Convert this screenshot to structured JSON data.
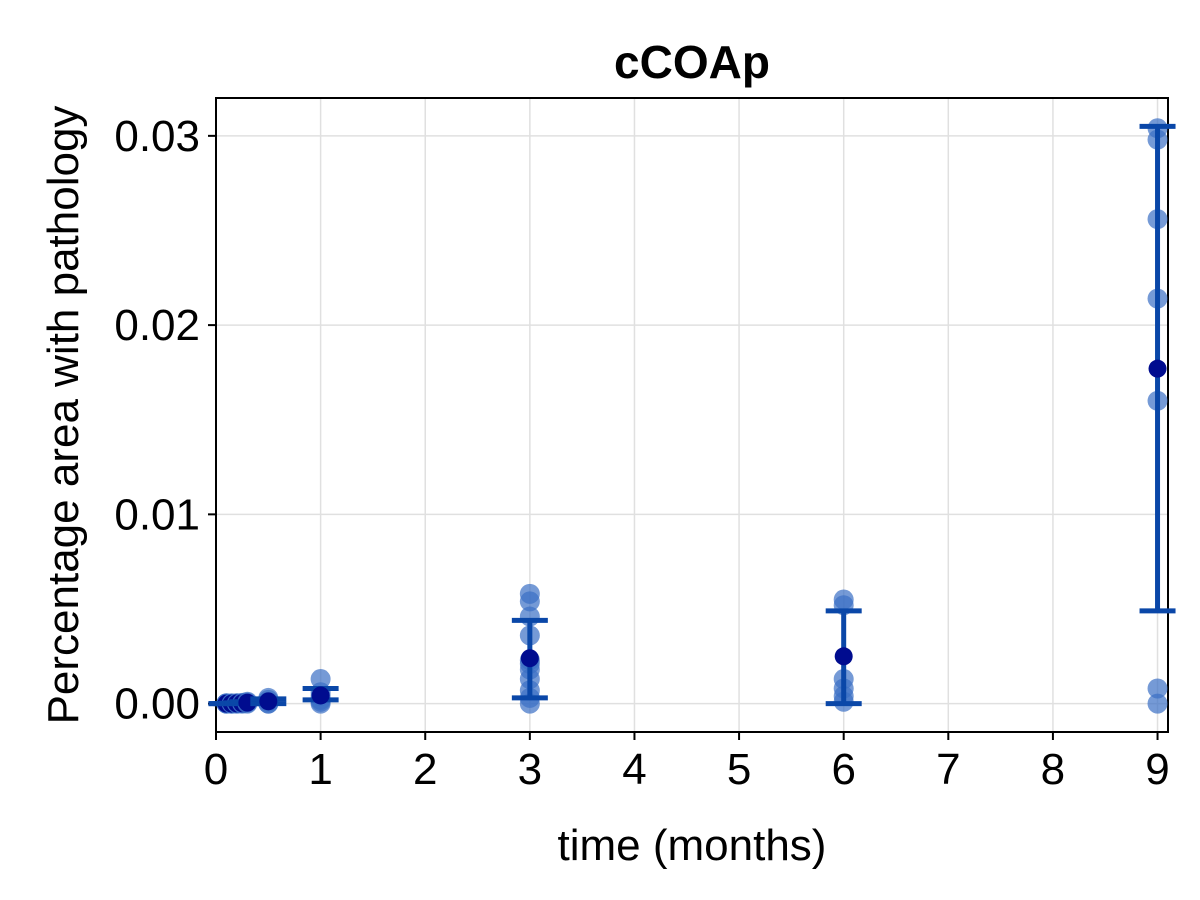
{
  "chart_data": {
    "type": "scatter",
    "title": "cCOAp",
    "xlabel": "time (months)",
    "ylabel": "Percentage area with pathology",
    "xlim": [
      0,
      9.1
    ],
    "ylim": [
      -0.0015,
      0.032
    ],
    "x_ticks": [
      0,
      1,
      2,
      3,
      4,
      5,
      6,
      7,
      8,
      9
    ],
    "x_tick_labels": [
      "0",
      "1",
      "2",
      "3",
      "4",
      "5",
      "6",
      "7",
      "8",
      "9"
    ],
    "y_ticks": [
      0,
      0.01,
      0.02,
      0.03
    ],
    "y_tick_labels": [
      "0.00",
      "0.01",
      "0.02",
      "0.03"
    ],
    "grid": true,
    "colors": {
      "points": "#3a6fc4",
      "error_bars": "#0a47a8",
      "mean": "#000c8f",
      "grid": "#e0e0e0"
    },
    "groups": [
      {
        "x": 0.1,
        "points": [
          0.0,
          1e-05,
          2e-05,
          0.0
        ],
        "mean": 0.0,
        "err_low": 0.0,
        "err_high": 0.0
      },
      {
        "x": 0.15,
        "points": [
          0.0,
          1e-05,
          0.0
        ],
        "mean": 0.0,
        "err_low": 0.0,
        "err_high": 0.0
      },
      {
        "x": 0.2,
        "points": [
          0.0,
          2e-05,
          1e-05
        ],
        "mean": 1e-05,
        "err_low": 0.0,
        "err_high": 2e-05
      },
      {
        "x": 0.25,
        "points": [
          0.0,
          4e-05,
          2e-05
        ],
        "mean": 2e-05,
        "err_low": 0.0,
        "err_high": 4e-05
      },
      {
        "x": 0.3,
        "points": [
          0.0,
          5e-05,
          0.0001
        ],
        "mean": 5e-05,
        "err_low": 0.0,
        "err_high": 0.0001
      },
      {
        "x": 0.5,
        "points": [
          0.0,
          0.0001,
          0.0002,
          0.0003,
          0.0
        ],
        "mean": 0.00012,
        "err_low": 0.0,
        "err_high": 0.00025
      },
      {
        "x": 1,
        "points": [
          0.0,
          0.0001,
          0.0002,
          0.0004,
          0.0006,
          0.0013
        ],
        "mean": 0.00043,
        "err_low": 0.0002,
        "err_high": 0.0008
      },
      {
        "x": 3,
        "points": [
          0.0,
          0.0003,
          0.0007,
          0.0013,
          0.0018,
          0.0021,
          0.0023,
          0.0036,
          0.0046,
          0.0054,
          0.0058
        ],
        "mean": 0.0024,
        "err_low": 0.0003,
        "err_high": 0.0044
      },
      {
        "x": 6,
        "points": [
          0.0001,
          0.0004,
          0.0008,
          0.0013,
          0.0052,
          0.0055
        ],
        "mean": 0.0025,
        "err_low": 0.0,
        "err_high": 0.0049
      },
      {
        "x": 9,
        "points": [
          0.0,
          0.0008,
          0.016,
          0.0214,
          0.0256,
          0.0298,
          0.0304
        ],
        "mean": 0.0177,
        "err_low": 0.0049,
        "err_high": 0.0305
      }
    ]
  }
}
